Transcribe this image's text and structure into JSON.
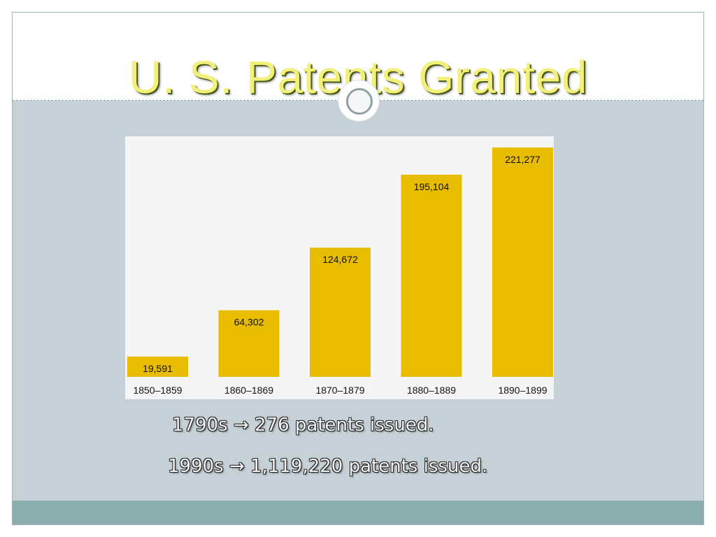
{
  "slide": {
    "title": "U. S. Patents Granted",
    "notes": [
      "1790s → 276 patents issued.",
      "1990s → 1,119,220 patents issued."
    ]
  },
  "colors": {
    "title_text": "#f3f07a",
    "body_background": "#c5d1d7",
    "footer_bar": "#8aaeae",
    "bar_fill": "#e8bc00",
    "chart_background": "#f5f5f5"
  },
  "chart_data": {
    "type": "bar",
    "title": "",
    "xlabel": "",
    "ylabel": "",
    "categories": [
      "1850–1859",
      "1860–1869",
      "1870–1879",
      "1880–1889",
      "1890–1899"
    ],
    "values": [
      19591,
      64302,
      124672,
      195104,
      221277
    ],
    "data_labels": [
      "19,591",
      "64,302",
      "124,672",
      "195,104",
      "221,277"
    ],
    "ylim": [
      0,
      221277
    ],
    "grid": false,
    "legend": "none"
  }
}
